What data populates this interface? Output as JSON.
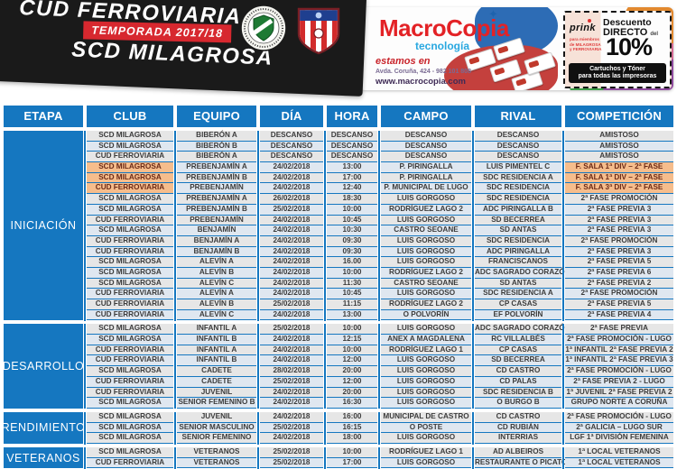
{
  "banner": {
    "title_line1": "CUD FERROVIARIA",
    "title_line2": "SCD MILAGROSA",
    "season_ribbon": "TEMPORADA 2017/18",
    "logos": [
      "cud-ferroviaria-crest",
      "scd-milagrosa-crest"
    ]
  },
  "ad": {
    "brand": "MacroCopia",
    "brand_sub": "tecnología",
    "tagline": "estamos en",
    "address": "Avda. Coruña, 424 - 982 101 808",
    "website": "www.macrocopia.com",
    "coupon": {
      "partner": "prink",
      "membership": [
        "para miembros",
        "de MILAGROSA",
        "y FERROVIARIA"
      ],
      "line1": "Descuento",
      "line2": "DIRECTO",
      "line2_small": "del",
      "discount": "10%",
      "footer1": "Cartuchos y Tóner",
      "footer2": "para todas las impresoras"
    }
  },
  "colors": {
    "table_blue": "#1577c0",
    "highlight_orange": "#f6bd8c",
    "highlight_text": "#6b2a17",
    "row_gray": "#e6e6e6",
    "row_alt": "#dfe7f0",
    "ribbon_red": "#d7282f",
    "brand_red": "#e32226",
    "brand_blue": "#29a8e0",
    "banner_black": "#1a1a1a"
  },
  "table": {
    "headers": [
      "ETAPA",
      "CLUB",
      "EQUIPO",
      "DÍA",
      "HORA",
      "CAMPO",
      "RIVAL",
      "COMPETICIÓN"
    ],
    "sections": [
      {
        "etapa": "INICIACIÓN",
        "rows": [
          {
            "club": "SCD MILAGROSA",
            "equipo": "BIBERÓN A",
            "dia": "DESCANSO",
            "hora": "DESCANSO",
            "campo": "DESCANSO",
            "rival": "DESCANSO",
            "competicion": "AMISTOSO",
            "highlight": false
          },
          {
            "club": "SCD MILAGROSA",
            "equipo": "BIBERÓN B",
            "dia": "DESCANSO",
            "hora": "DESCANSO",
            "campo": "DESCANSO",
            "rival": "DESCANSO",
            "competicion": "AMISTOSO",
            "highlight": false
          },
          {
            "club": "CUD FERROVIARIA",
            "equipo": "BIBERÓN A",
            "dia": "DESCANSO",
            "hora": "DESCANSO",
            "campo": "DESCANSO",
            "rival": "DESCANSO",
            "competicion": "AMISTOSO",
            "highlight": false
          },
          {
            "club": "SCD MILAGROSA",
            "equipo": "PREBENJAMÍN A",
            "dia": "24/02/2018",
            "hora": "13:00",
            "campo": "P. PIRINGALLA",
            "rival": "LUIS PIMENTEL C",
            "competicion": "F. SALA 1ª DIV – 2ª FASE",
            "highlight": true
          },
          {
            "club": "SCD MILAGROSA",
            "equipo": "PREBENJAMÍN B",
            "dia": "24/02/2018",
            "hora": "17:00",
            "campo": "P. PIRINGALLA",
            "rival": "SDC RESIDENCIA A",
            "competicion": "F. SALA 1ª DIV – 2ª FASE",
            "highlight": true
          },
          {
            "club": "CUD FERROVIARIA",
            "equipo": "PREBENJAMÍN",
            "dia": "24/02/2018",
            "hora": "12:40",
            "campo": "P. MUNICIPAL DE LUGO",
            "rival": "SDC RESIDENCIA",
            "competicion": "F. SALA 3ª DIV – 2ª FASE",
            "highlight": true
          },
          {
            "club": "SCD MILAGROSA",
            "equipo": "PREBENJAMÍN A",
            "dia": "26/02/2018",
            "hora": "18:30",
            "campo": "LUIS GORGOSO",
            "rival": "SDC RESIDENCIA",
            "competicion": "2ª FASE PROMOCIÓN",
            "highlight": false
          },
          {
            "club": "SCD MILAGROSA",
            "equipo": "PREBENJAMÍN B",
            "dia": "25/02/2018",
            "hora": "10:00",
            "campo": "RODRÍGUEZ LAGO 2",
            "rival": "ADC PIRINGALLA B",
            "competicion": "2ª FASE PREVIA 3",
            "highlight": false
          },
          {
            "club": "CUD FERROVIARIA",
            "equipo": "PREBENJAMÍN",
            "dia": "24/02/2018",
            "hora": "10:45",
            "campo": "LUIS GORGOSO",
            "rival": "SD BECERREA",
            "competicion": "2ª FASE PREVIA 3",
            "highlight": false
          },
          {
            "club": "SCD MILAGROSA",
            "equipo": "BENJAMÍN",
            "dia": "24/02/2018",
            "hora": "10:30",
            "campo": "CASTRO SEOANE",
            "rival": "SD ANTAS",
            "competicion": "2ª FASE PREVIA 3",
            "highlight": false
          },
          {
            "club": "CUD FERROVIARIA",
            "equipo": "BENJAMÍN A",
            "dia": "24/02/2018",
            "hora": "09:30",
            "campo": "LUIS GORGOSO",
            "rival": "SDC RESIDENCIA",
            "competicion": "2ª FASE PROMOCIÓN",
            "highlight": false
          },
          {
            "club": "CUD FERROVIARIA",
            "equipo": "BENJAMÍN B",
            "dia": "24/02/2018",
            "hora": "09:30",
            "campo": "LUIS GORGOSO",
            "rival": "ADC PIRINGALLA",
            "competicion": "2ª FASE PREVIA 3",
            "highlight": false
          },
          {
            "club": "SCD MILAGROSA",
            "equipo": "ALEVÍN A",
            "dia": "24/02/2018",
            "hora": "16.00",
            "campo": "LUIS GORGOSO",
            "rival": "FRANCISCANOS",
            "competicion": "2ª FASE PREVIA 5",
            "highlight": false
          },
          {
            "club": "SCD MILAGROSA",
            "equipo": "ALEVÍN B",
            "dia": "24/02/2018",
            "hora": "10:00",
            "campo": "RODRÍGUEZ LAGO 2",
            "rival": "ADC SAGRADO CORAZÓN",
            "competicion": "2ª FASE PREVIA 6",
            "highlight": false
          },
          {
            "club": "SCD MILAGROSA",
            "equipo": "ALEVÍN C",
            "dia": "24/02/2018",
            "hora": "11:30",
            "campo": "CASTRO SEOANE",
            "rival": "SD ANTAS",
            "competicion": "2ª FASE PREVIA 2",
            "highlight": false
          },
          {
            "club": "CUD FERROVIARIA",
            "equipo": "ALEVÍN A",
            "dia": "24/02/2018",
            "hora": "10:45",
            "campo": "LUIS GORGOSO",
            "rival": "SDC RESIDENCIA A",
            "competicion": "2ª FASE PROMOCIÓN",
            "highlight": false
          },
          {
            "club": "CUD FERROVIARIA",
            "equipo": "ALEVÍN B",
            "dia": "25/02/2018",
            "hora": "11:15",
            "campo": "RODRÍGUEZ LAGO 2",
            "rival": "CP CASAS",
            "competicion": "2ª FASE PREVIA 5",
            "highlight": false
          },
          {
            "club": "CUD FERROVIARIA",
            "equipo": "ALEVÍN C",
            "dia": "24/02/2018",
            "hora": "13:00",
            "campo": "O POLVORÍN",
            "rival": "EF POLVORÍN",
            "competicion": "2ª FASE PREVIA 4",
            "highlight": false
          }
        ]
      },
      {
        "etapa": "DESARROLLO",
        "rows": [
          {
            "club": "SCD MILAGROSA",
            "equipo": "INFANTIL A",
            "dia": "25/02/2018",
            "hora": "10:00",
            "campo": "LUIS GORGOSO",
            "rival": "ADC SAGRADO CORAZÓN",
            "competicion": "2ª FASE PREVIA",
            "highlight": false
          },
          {
            "club": "SCD MILAGROSA",
            "equipo": "INFANTIL B",
            "dia": "24/02/2018",
            "hora": "12:15",
            "campo": "ANEX A MAGDALENA",
            "rival": "RC VILLALBÉS",
            "competicion": "2ª FASE PROMOCIÓN - LUGO",
            "highlight": false
          },
          {
            "club": "CUD FERROVIARIA",
            "equipo": "INFANTIL A",
            "dia": "24/02/2018",
            "hora": "10:00",
            "campo": "RODRÍGUEZ LAGO 1",
            "rival": "CP CASAS",
            "competicion": "1ª INFANTIL 2ª FASE PREVIA 2",
            "highlight": false
          },
          {
            "club": "CUD FERROVIARIA",
            "equipo": "INFANTIL B",
            "dia": "24/02/2018",
            "hora": "12:00",
            "campo": "LUIS GORGOSO",
            "rival": "SD BECERREA",
            "competicion": "1ª INFANTIL 2ª FASE PREVIA 3",
            "highlight": false
          },
          {
            "club": "SCD MILAGROSA",
            "equipo": "CADETE",
            "dia": "28/02/2018",
            "hora": "20:00",
            "campo": "LUIS GORGOSO",
            "rival": "CD CASTRO",
            "competicion": "2ª FASE PROMOCIÓN - LUGO",
            "highlight": false
          },
          {
            "club": "CUD FERROVIARIA",
            "equipo": "CADETE",
            "dia": "25/02/2018",
            "hora": "12:00",
            "campo": "LUIS GORGOSO",
            "rival": "CD PALAS",
            "competicion": "2ª FASE PREVIA 2 - LUGO",
            "highlight": false
          },
          {
            "club": "CUD FERROVIARIA",
            "equipo": "JUVENIL",
            "dia": "24/02/2018",
            "hora": "20:00",
            "campo": "LUIS GORGOSO",
            "rival": "SDC RESIDENCIA B",
            "competicion": "1ª JUVENIL 2ª FASE PREVIA 2",
            "highlight": false
          },
          {
            "club": "SCD MILAGROSA",
            "equipo": "SENIOR FEMENINO B",
            "dia": "24/02/2018",
            "hora": "16:30",
            "campo": "LUIS GORGOSO",
            "rival": "O BURGO B",
            "competicion": "GRUPO NORTE A CORUÑA",
            "highlight": false
          }
        ]
      },
      {
        "etapa": "RENDIMIENTO",
        "rows": [
          {
            "club": "SCD MILAGROSA",
            "equipo": "JUVENIL",
            "dia": "24/02/2018",
            "hora": "16:00",
            "campo": "MUNICIPAL DE CASTRO",
            "rival": "CD CASTRO",
            "competicion": "2ª FASE PROMOCIÓN - LUGO",
            "highlight": false
          },
          {
            "club": "SCD MILAGROSA",
            "equipo": "SENIOR MASCULINO",
            "dia": "25/02/2018",
            "hora": "16:15",
            "campo": "O POSTE",
            "rival": "CD RUBIÁN",
            "competicion": "2ª GALICIA – LUGO SUR",
            "highlight": false
          },
          {
            "club": "SCD MILAGROSA",
            "equipo": "SENIOR FEMENINO",
            "dia": "24/02/2018",
            "hora": "18:00",
            "campo": "LUIS GORGOSO",
            "rival": "INTERRIAS",
            "competicion": "LGF 1ª DIVISIÓN FEMENINA",
            "highlight": false
          }
        ]
      },
      {
        "etapa": "VETERANOS",
        "rows": [
          {
            "club": "SCD MILAGROSA",
            "equipo": "VETERANOS",
            "dia": "25/02/2018",
            "hora": "10:00",
            "campo": "RODRÍGUEZ LAGO 1",
            "rival": "AD ALBEIROS",
            "competicion": "1ª LOCAL VETERANOS",
            "highlight": false
          },
          {
            "club": "CUD FERROVIARIA",
            "equipo": "VETERANOS",
            "dia": "25/02/2018",
            "hora": "17:00",
            "campo": "LUIS GORGOSO",
            "rival": "RESTAURANTE O PICATO",
            "competicion": "1ª LOCAL VETERANOS",
            "highlight": false
          }
        ]
      }
    ]
  }
}
